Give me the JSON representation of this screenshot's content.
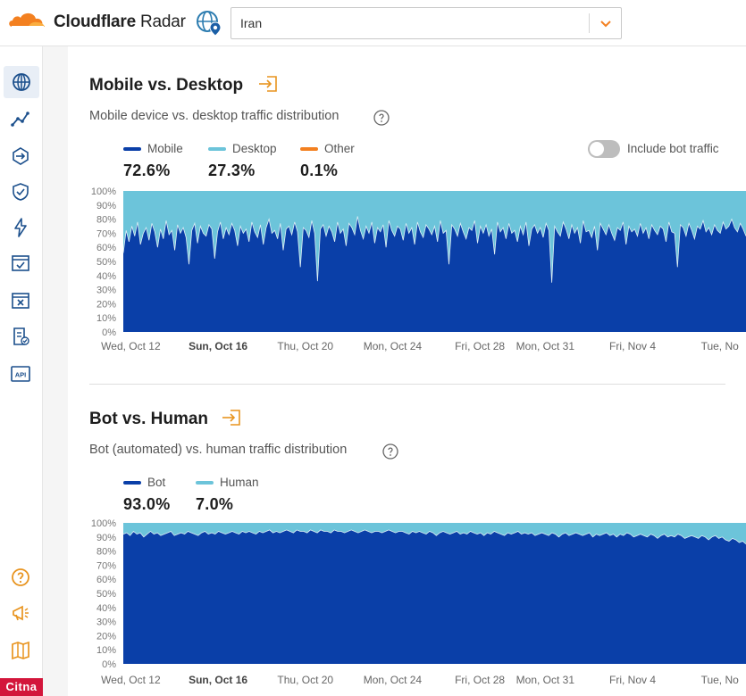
{
  "header": {
    "brand_bold": "Cloudflare",
    "brand_regular": " Radar",
    "location_value": "Iran"
  },
  "sidebar": {
    "items": [
      "globe-icon",
      "line-chart-icon",
      "routing-icon",
      "shield-icon",
      "lightning-icon",
      "calendar-check-icon",
      "window-close-icon",
      "report-check-icon",
      "api-icon"
    ],
    "bottom_items": [
      "help-circle-icon",
      "megaphone-icon",
      "book-map-icon"
    ]
  },
  "watermark": "Citna",
  "colors": {
    "primary": "#0a3fa8",
    "secondary": "#6cc4da",
    "other": "#f38020",
    "accent": "#f38020"
  },
  "mobile_desktop": {
    "title": "Mobile vs. Desktop",
    "subtitle": "Mobile device vs. desktop traffic distribution",
    "legend": [
      {
        "label": "Mobile",
        "value": "72.6%",
        "color": "#0a3fa8"
      },
      {
        "label": "Desktop",
        "value": "27.3%",
        "color": "#6cc4da"
      },
      {
        "label": "Other",
        "value": "0.1%",
        "color": "#f38020"
      }
    ],
    "toggle_label": "Include bot traffic"
  },
  "bot_human": {
    "title": "Bot vs. Human",
    "subtitle": "Bot (automated) vs. human traffic distribution",
    "legend": [
      {
        "label": "Bot",
        "value": "93.0%",
        "color": "#0a3fa8"
      },
      {
        "label": "Human",
        "value": "7.0%",
        "color": "#6cc4da"
      }
    ]
  },
  "chart_data": [
    {
      "type": "area",
      "stacked": true,
      "y_ticks": [
        "100%",
        "90%",
        "80%",
        "70%",
        "60%",
        "50%",
        "40%",
        "30%",
        "20%",
        "10%",
        "0%"
      ],
      "ylim": [
        0,
        100
      ],
      "x_ticks": [
        {
          "label": "Wed, Oct 12",
          "day": 0,
          "bold": false
        },
        {
          "label": "Sun, Oct 16",
          "day": 4,
          "bold": true
        },
        {
          "label": "Thu, Oct 20",
          "day": 8,
          "bold": false
        },
        {
          "label": "Mon, Oct 24",
          "day": 12,
          "bold": false
        },
        {
          "label": "Fri, Oct 28",
          "day": 16,
          "bold": false
        },
        {
          "label": "Mon, Oct 31",
          "day": 19,
          "bold": false
        },
        {
          "label": "Fri, Nov 4",
          "day": 23,
          "bold": false
        },
        {
          "label": "Tue, No",
          "day": 27,
          "bold": false
        }
      ],
      "x_range_days": [
        -1,
        28.2
      ],
      "series": [
        {
          "name": "Mobile",
          "color": "#0a3fa8",
          "values": [
            56,
            72,
            64,
            75,
            68,
            78,
            62,
            70,
            74,
            65,
            77,
            71,
            60,
            73,
            66,
            79,
            69,
            72,
            58,
            76,
            70,
            74,
            67,
            48,
            72,
            77,
            63,
            75,
            70,
            68,
            76,
            73,
            52,
            71,
            78,
            66,
            74,
            69,
            77,
            72,
            61,
            75,
            70,
            73,
            64,
            78,
            71,
            67,
            76,
            62,
            74,
            80,
            70,
            72,
            66,
            77,
            58,
            73,
            75,
            69,
            78,
            71,
            46,
            74,
            72,
            67,
            79,
            70,
            36,
            73,
            76,
            68,
            75,
            71,
            64,
            78,
            70,
            73,
            61,
            77,
            74,
            69,
            82,
            72,
            66,
            75,
            70,
            78,
            63,
            74,
            71,
            76,
            60,
            79,
            72,
            68,
            75,
            73,
            65,
            77,
            70,
            74,
            62,
            78,
            71,
            67,
            76,
            73,
            69,
            75,
            64,
            79,
            70,
            72,
            48,
            76,
            73,
            68,
            77,
            71,
            66,
            74,
            72,
            79,
            63,
            75,
            70,
            76,
            68,
            73,
            55,
            78,
            71,
            74,
            66,
            77,
            70,
            72,
            64,
            75,
            69,
            78,
            61,
            73,
            76,
            70,
            74,
            67,
            77,
            72,
            35,
            75,
            71,
            68,
            78,
            73,
            66,
            76,
            70,
            74,
            63,
            79,
            71,
            72,
            67,
            75,
            58,
            77,
            73,
            69,
            76,
            70,
            65,
            74,
            72,
            78,
            62,
            75,
            71,
            73,
            68,
            77,
            70,
            74,
            66,
            76,
            72,
            69,
            75,
            73,
            64,
            78,
            71,
            70,
            46,
            76,
            74,
            68,
            77,
            72,
            66,
            75,
            73,
            79,
            71,
            74,
            69,
            76,
            72,
            70,
            78,
            73,
            75,
            80,
            74,
            71,
            77,
            73,
            68
          ]
        },
        {
          "name": "Desktop",
          "color": "#6cc4da",
          "values": [
            44,
            28,
            36,
            25,
            32,
            22,
            38,
            30,
            26,
            35,
            23,
            29,
            40,
            27,
            34,
            21,
            31,
            28,
            42,
            24,
            30,
            26,
            33,
            52,
            28,
            23,
            37,
            25,
            30,
            32,
            24,
            27,
            48,
            29,
            22,
            34,
            26,
            31,
            23,
            28,
            39,
            25,
            30,
            27,
            36,
            22,
            29,
            33,
            24,
            38,
            26,
            20,
            30,
            28,
            34,
            23,
            42,
            27,
            25,
            31,
            22,
            29,
            54,
            26,
            28,
            33,
            21,
            30,
            64,
            27,
            24,
            32,
            25,
            29,
            36,
            22,
            30,
            27,
            39,
            23,
            26,
            31,
            18,
            28,
            34,
            25,
            30,
            22,
            37,
            26,
            29,
            24,
            40,
            21,
            28,
            32,
            25,
            27,
            35,
            23,
            30,
            26,
            38,
            22,
            29,
            33,
            24,
            27,
            31,
            25,
            36,
            21,
            30,
            28,
            52,
            24,
            27,
            32,
            23,
            29,
            34,
            26,
            28,
            21,
            37,
            25,
            30,
            24,
            32,
            27,
            45,
            22,
            29,
            26,
            34,
            23,
            30,
            28,
            36,
            25,
            31,
            22,
            39,
            27,
            24,
            30,
            26,
            33,
            23,
            28,
            65,
            25,
            29,
            32,
            22,
            27,
            34,
            24,
            30,
            26,
            37,
            21,
            29,
            28,
            33,
            25,
            42,
            23,
            27,
            31,
            24,
            30,
            35,
            26,
            28,
            22,
            38,
            25,
            29,
            27,
            32,
            23,
            30,
            26,
            34,
            24,
            28,
            31,
            25,
            27,
            36,
            22,
            29,
            30,
            54,
            24,
            26,
            32,
            23,
            28,
            34,
            25,
            27,
            21,
            29,
            26,
            31,
            24,
            28,
            30,
            22,
            27,
            25,
            20,
            26,
            29,
            23,
            27,
            32
          ]
        }
      ]
    },
    {
      "type": "area",
      "stacked": true,
      "y_ticks": [
        "100%",
        "90%",
        "80%",
        "70%",
        "60%",
        "50%",
        "40%",
        "30%",
        "20%",
        "10%",
        "0%"
      ],
      "ylim": [
        0,
        100
      ],
      "x_ticks": [
        {
          "label": "Wed, Oct 12",
          "day": 0,
          "bold": false
        },
        {
          "label": "Sun, Oct 16",
          "day": 4,
          "bold": true
        },
        {
          "label": "Thu, Oct 20",
          "day": 8,
          "bold": false
        },
        {
          "label": "Mon, Oct 24",
          "day": 12,
          "bold": false
        },
        {
          "label": "Fri, Oct 28",
          "day": 16,
          "bold": false
        },
        {
          "label": "Mon, Oct 31",
          "day": 19,
          "bold": false
        },
        {
          "label": "Fri, Nov 4",
          "day": 23,
          "bold": false
        },
        {
          "label": "Tue, No",
          "day": 27,
          "bold": false
        }
      ],
      "x_range_days": [
        -1,
        28.2
      ],
      "series": [
        {
          "name": "Bot",
          "color": "#0a3fa8",
          "values": [
            92,
            93,
            91,
            94,
            92,
            93,
            90,
            92,
            94,
            92,
            93,
            91,
            92,
            93,
            94,
            91,
            92,
            93,
            92,
            94,
            93,
            92,
            91,
            93,
            94,
            92,
            93,
            92,
            94,
            93,
            92,
            93,
            94,
            93,
            92,
            94,
            93,
            94,
            93,
            92,
            94,
            93,
            94,
            95,
            93,
            94,
            93,
            94,
            95,
            94,
            93,
            95,
            94,
            94,
            93,
            95,
            94,
            93,
            95,
            94,
            94,
            93,
            95,
            94,
            94,
            93,
            94,
            95,
            94,
            93,
            94,
            95,
            94,
            93,
            94,
            94,
            93,
            94,
            95,
            94,
            93,
            94,
            94,
            93,
            92,
            94,
            93,
            94,
            93,
            92,
            94,
            93,
            91,
            93,
            94,
            93,
            92,
            93,
            94,
            92,
            93,
            92,
            94,
            93,
            92,
            93,
            91,
            93,
            92,
            94,
            93,
            92,
            91,
            93,
            92,
            93,
            94,
            92,
            93,
            92,
            93,
            91,
            92,
            93,
            92,
            91,
            93,
            92,
            90,
            92,
            93,
            91,
            92,
            93,
            92,
            91,
            92,
            93,
            90,
            92,
            91,
            92,
            93,
            91,
            92,
            90,
            92,
            91,
            93,
            92,
            90,
            91,
            92,
            91,
            90,
            92,
            91,
            89,
            91,
            92,
            90,
            91,
            90,
            92,
            91,
            89,
            90,
            91,
            90,
            89,
            91,
            90,
            88,
            90,
            91,
            89,
            90,
            88,
            87,
            89,
            88,
            86,
            87,
            85
          ]
        },
        {
          "name": "Human",
          "color": "#6cc4da",
          "values": [
            8,
            7,
            9,
            6,
            8,
            7,
            10,
            8,
            6,
            8,
            7,
            9,
            8,
            7,
            6,
            9,
            8,
            7,
            8,
            6,
            7,
            8,
            9,
            7,
            6,
            8,
            7,
            8,
            6,
            7,
            8,
            7,
            6,
            7,
            8,
            6,
            7,
            6,
            7,
            8,
            6,
            7,
            6,
            5,
            7,
            6,
            7,
            6,
            5,
            6,
            7,
            5,
            6,
            6,
            7,
            5,
            6,
            7,
            5,
            6,
            6,
            7,
            5,
            6,
            6,
            7,
            6,
            5,
            6,
            7,
            6,
            5,
            6,
            7,
            6,
            6,
            7,
            6,
            5,
            6,
            7,
            6,
            6,
            7,
            8,
            6,
            7,
            6,
            7,
            8,
            6,
            7,
            9,
            7,
            6,
            7,
            8,
            7,
            6,
            8,
            7,
            8,
            6,
            7,
            8,
            7,
            9,
            7,
            8,
            6,
            7,
            8,
            9,
            7,
            8,
            7,
            6,
            8,
            7,
            8,
            7,
            9,
            8,
            7,
            8,
            9,
            7,
            8,
            10,
            8,
            7,
            9,
            8,
            7,
            8,
            9,
            8,
            7,
            10,
            8,
            9,
            8,
            7,
            9,
            8,
            10,
            8,
            9,
            7,
            8,
            10,
            9,
            8,
            9,
            10,
            8,
            9,
            11,
            9,
            8,
            10,
            9,
            10,
            8,
            9,
            11,
            10,
            9,
            10,
            11,
            9,
            10,
            12,
            10,
            9,
            11,
            10,
            12,
            13,
            11,
            12,
            14,
            13,
            15
          ]
        }
      ]
    }
  ]
}
